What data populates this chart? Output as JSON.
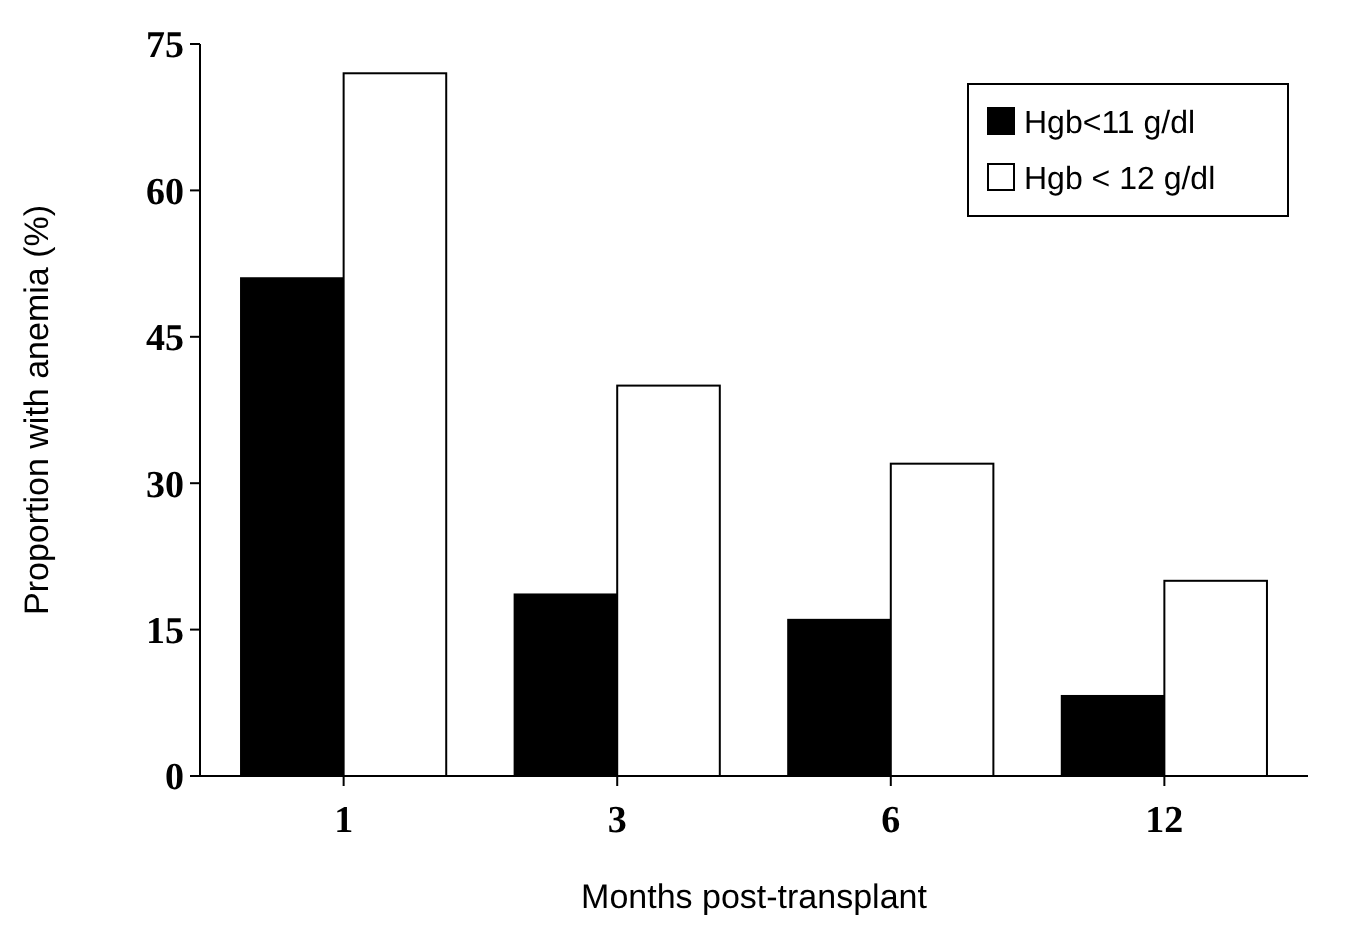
{
  "chart_data": {
    "type": "bar",
    "xlabel": "Months post-transplant",
    "ylabel": "Proportion with anemia (%)",
    "categories": [
      "1",
      "3",
      "6",
      "12"
    ],
    "series": [
      {
        "name": "Hgb<11 g/dl",
        "color": "#000000",
        "values": [
          51,
          18.6,
          16,
          8.2
        ]
      },
      {
        "name": "Hgb < 12 g/dl",
        "color": "#ffffff",
        "values": [
          72,
          40,
          32,
          20
        ]
      }
    ],
    "ylim": [
      0,
      75
    ],
    "yticks": [
      0,
      15,
      30,
      45,
      60,
      75
    ],
    "grid": false,
    "legend": "top right"
  }
}
